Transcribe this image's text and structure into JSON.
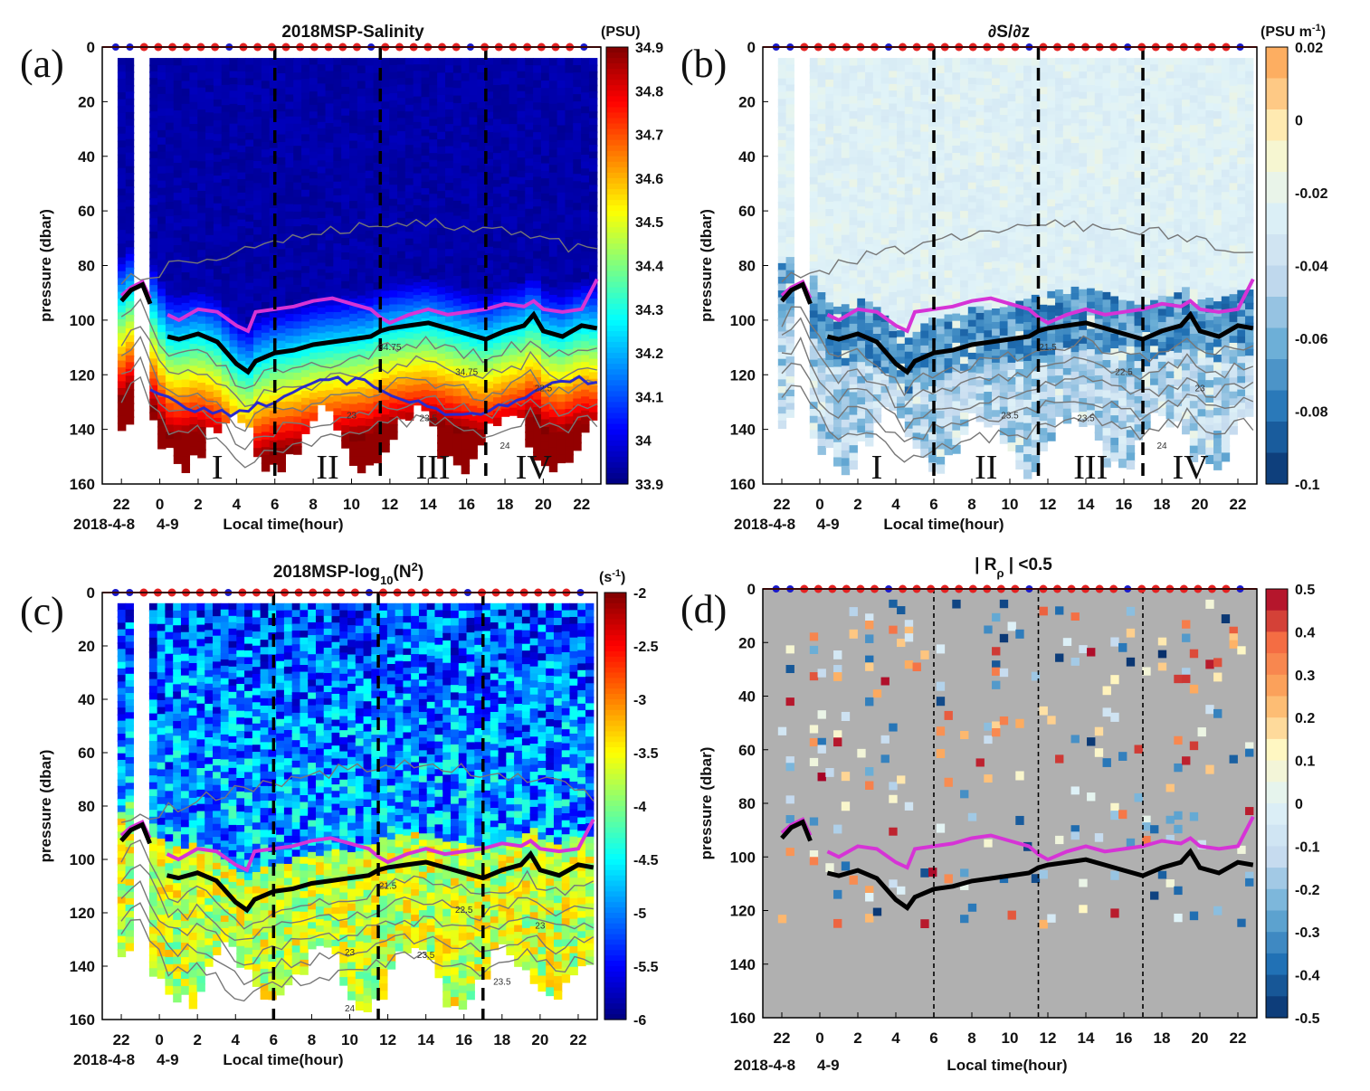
{
  "colors": {
    "salinity_scale": [
      "#00007f",
      "#0000ff",
      "#007fff",
      "#00ffff",
      "#7fff7f",
      "#ffff00",
      "#ff7f00",
      "#ff0000",
      "#7f0000"
    ],
    "diverging_scale": [
      "#08306b",
      "#2171b5",
      "#6baed6",
      "#c6dbef",
      "#e0f3f8",
      "#fff7c2",
      "#fdae61",
      "#f46d43",
      "#a50026"
    ],
    "gray_background": "#b0b0b0",
    "magenta_line": "#d633d6",
    "black_line": "#000000",
    "blue_contour": "#2a2acc",
    "red_marker": "#e52222",
    "blue_marker": "#1a1acc"
  },
  "chart_data": [
    {
      "panel_label": "(a)",
      "type": "heatmap",
      "title": "2018MSP-Salinity",
      "ylabel": "pressure (dbar)",
      "xlabel": "Local time(hour)",
      "date_labels": [
        "2018-4-8",
        "4-9"
      ],
      "yticks": [
        "0",
        "20",
        "40",
        "60",
        "80",
        "100",
        "120",
        "140",
        "160"
      ],
      "xticks": [
        "22",
        "0",
        "2",
        "4",
        "6",
        "8",
        "10",
        "12",
        "14",
        "16",
        "18",
        "20",
        "22"
      ],
      "colorbar_unit": "(PSU)",
      "colorbar_ticks": [
        "34.9",
        "34.8",
        "34.7",
        "34.6",
        "34.5",
        "34.4",
        "34.3",
        "34.2",
        "34.1",
        "34",
        "33.9"
      ],
      "colorbar_range": [
        33.9,
        34.9
      ],
      "ylim": [
        0,
        160
      ],
      "phase_labels": [
        "I",
        "II",
        "III",
        "IV"
      ],
      "contour_labels": [
        "34.75",
        "34.75",
        "22.5",
        "23",
        "23.5",
        "24"
      ],
      "scale": "salinity"
    },
    {
      "panel_label": "(b)",
      "type": "heatmap",
      "title": "∂S/∂z",
      "ylabel": "pressure (dbar)",
      "xlabel": "Local time(hour)",
      "date_labels": [
        "2018-4-8",
        "4-9"
      ],
      "yticks": [
        "0",
        "20",
        "40",
        "60",
        "80",
        "100",
        "120",
        "140",
        "160"
      ],
      "xticks": [
        "22",
        "0",
        "2",
        "4",
        "6",
        "8",
        "10",
        "12",
        "14",
        "16",
        "18",
        "20",
        "22"
      ],
      "colorbar_unit": "(PSU m",
      "colorbar_unit_sup": "-1",
      "colorbar_unit_close": ")",
      "colorbar_ticks": [
        "0.02",
        "0",
        "-0.02",
        "-0.04",
        "-0.06",
        "-0.08",
        "-0.1"
      ],
      "colorbar_range": [
        -0.1,
        0.02
      ],
      "ylim": [
        0,
        160
      ],
      "phase_labels": [
        "I",
        "II",
        "III",
        "IV"
      ],
      "contour_labels": [
        "21.5",
        "22.5",
        "23",
        "23.5",
        "23.5",
        "24"
      ],
      "scale": "gradient"
    },
    {
      "panel_label": "(c)",
      "type": "heatmap",
      "title": "2018MSP-log",
      "title_sub": "10",
      "title_tail": "(N",
      "title_sup": "2",
      "title_close": ")",
      "ylabel": "pressure (dbar)",
      "xlabel": "Local time(hour)",
      "date_labels": [
        "2018-4-8",
        "4-9"
      ],
      "yticks": [
        "0",
        "20",
        "40",
        "60",
        "80",
        "100",
        "120",
        "140",
        "160"
      ],
      "xticks": [
        "22",
        "0",
        "2",
        "4",
        "6",
        "8",
        "10",
        "12",
        "14",
        "16",
        "18",
        "20",
        "22"
      ],
      "colorbar_unit": "(s",
      "colorbar_unit_sup": "-1",
      "colorbar_unit_close": ")",
      "colorbar_ticks": [
        "-2",
        "-2.5",
        "-3",
        "-3.5",
        "-4",
        "-4.5",
        "-5",
        "-5.5",
        "-6"
      ],
      "colorbar_range": [
        -6,
        -2
      ],
      "ylim": [
        0,
        160
      ],
      "contour_labels": [
        "21.5",
        "22.5",
        "23",
        "23",
        "23.5",
        "23.5",
        "24"
      ],
      "scale": "salinity"
    },
    {
      "panel_label": "(d)",
      "type": "heatmap",
      "title": "| R",
      "title_sub": "ρ",
      "title_tail": " | <0.5",
      "ylabel": "pressure (dbar)",
      "xlabel": "Local time(hour)",
      "date_labels": [
        "2018-4-8",
        "4-9"
      ],
      "yticks": [
        "0",
        "20",
        "40",
        "60",
        "80",
        "100",
        "120",
        "140",
        "160"
      ],
      "xticks": [
        "22",
        "0",
        "2",
        "4",
        "6",
        "8",
        "10",
        "12",
        "14",
        "16",
        "18",
        "20",
        "22"
      ],
      "colorbar_ticks": [
        "0.5",
        "0.4",
        "0.3",
        "0.2",
        "0.1",
        "0",
        "-0.1",
        "-0.2",
        "-0.3",
        "-0.4",
        "-0.5"
      ],
      "colorbar_range": [
        -0.5,
        0.5
      ],
      "ylim": [
        0,
        160
      ],
      "scale": "rho"
    }
  ],
  "series_lines": {
    "time_hours": [
      -2,
      -1.5,
      -0.9,
      -0.5,
      0.4,
      1,
      2,
      3,
      4,
      4.6,
      5,
      6,
      7,
      8,
      9,
      10,
      11,
      11.5,
      12,
      13,
      14,
      15,
      16,
      17,
      18,
      19,
      19.5,
      20,
      21,
      22,
      22.8
    ],
    "magenta_pressure": [
      91,
      88,
      86,
      92,
      98,
      100,
      96,
      97,
      102,
      104,
      97,
      96,
      95,
      93,
      92,
      94,
      96,
      99,
      101,
      98,
      96,
      98,
      97,
      96,
      94,
      95,
      93,
      96,
      97,
      96,
      85
    ],
    "black_pressure": [
      93,
      89,
      87,
      94,
      106,
      107,
      105,
      108,
      116,
      119,
      115,
      112,
      111,
      109,
      108,
      107,
      106,
      104,
      103,
      102,
      101,
      103,
      105,
      107,
      104,
      102,
      98,
      104,
      106,
      102,
      103
    ]
  },
  "phase_boundaries_hours": [
    6,
    11.5,
    17
  ]
}
